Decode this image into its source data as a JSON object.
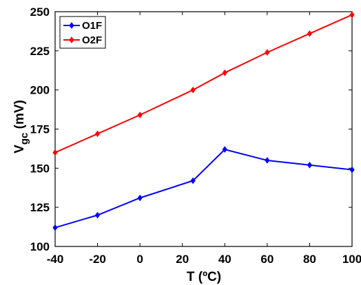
{
  "chart_data": {
    "type": "line",
    "xlabel": "T (ºC)",
    "ylabel_main": "V",
    "ylabel_sub": "gc",
    "ylabel_unit": " (mV)",
    "xlim": [
      -40,
      100
    ],
    "ylim": [
      100,
      250
    ],
    "x_ticks": [
      -40,
      -20,
      0,
      20,
      40,
      60,
      80,
      100
    ],
    "y_ticks": [
      100,
      125,
      150,
      175,
      200,
      225,
      250
    ],
    "x_tick_labels": [
      "-40",
      "-20",
      "0",
      "20",
      "40",
      "60",
      "80",
      "100"
    ],
    "y_tick_labels": [
      "100",
      "125",
      "150",
      "175",
      "200",
      "225",
      "250"
    ],
    "grid": false,
    "legend_position": "top-left",
    "series": [
      {
        "name": "O1F",
        "color": "#0000ff",
        "x": [
          -40,
          -20,
          0,
          25,
          40,
          60,
          80,
          100
        ],
        "values": [
          112,
          120,
          131,
          142,
          162,
          155,
          152,
          149
        ]
      },
      {
        "name": "O2F",
        "color": "#ff0000",
        "x": [
          -40,
          -20,
          0,
          25,
          40,
          60,
          80,
          100
        ],
        "values": [
          160,
          172,
          184,
          200,
          211,
          224,
          236,
          248
        ]
      }
    ]
  }
}
